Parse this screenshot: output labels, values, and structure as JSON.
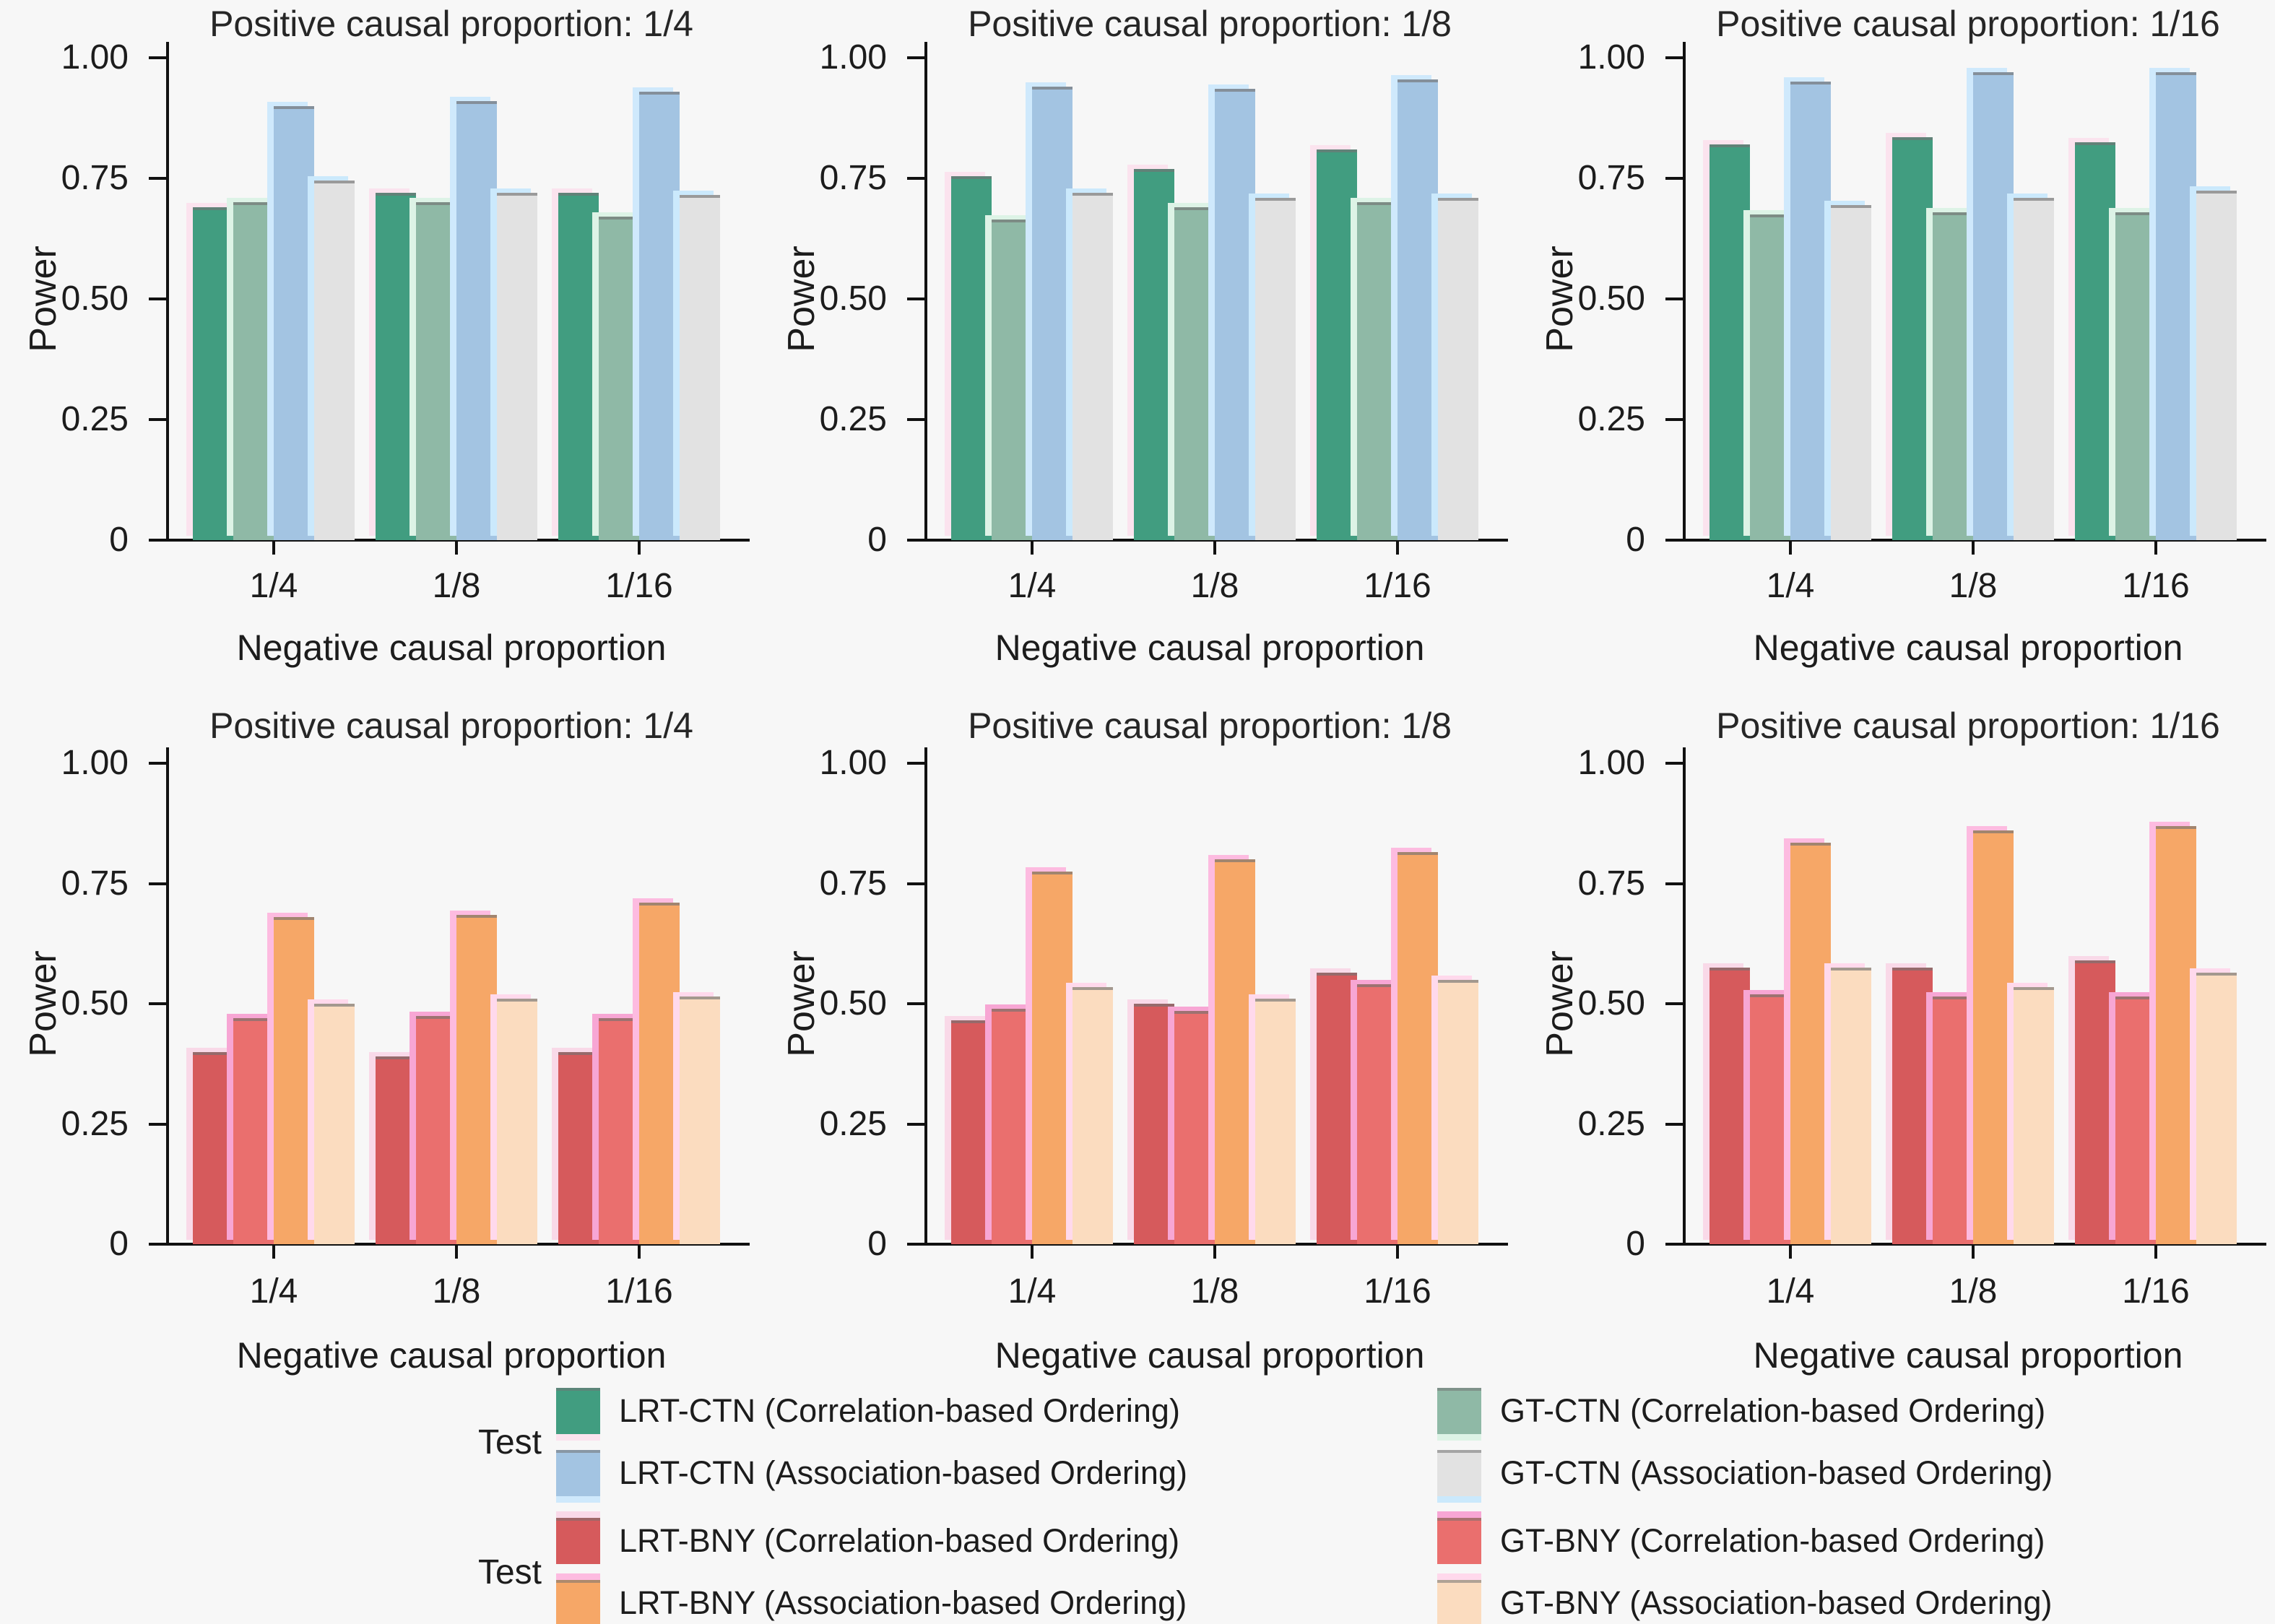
{
  "figure": {
    "background": "#f7f7f7",
    "ylabel": "Power",
    "xlabel": "Negative causal proportion",
    "ytick_labels": [
      "1.00",
      "0.75",
      "0.50",
      "0.25",
      "0"
    ],
    "xtick_labels": [
      "1/4",
      "1/8",
      "1/16"
    ],
    "ylim": [
      0,
      1
    ]
  },
  "series_colors": {
    "lrt_ctn_corr": "#419D80",
    "gt_ctn_corr": "#8FB9A6",
    "lrt_ctn_assoc": "#A3C4E2",
    "gt_ctn_assoc": "#E2E2E2",
    "lrt_bny_corr": "#D65A5C",
    "gt_bny_corr": "#EA6F6E",
    "lrt_bny_assoc": "#F6A767",
    "gt_bny_assoc": "#FBDCBF"
  },
  "ghost_colors": {
    "lrt_ctn_corr": "#FBE3EE",
    "gt_ctn_corr": "#DDF3E6",
    "lrt_ctn_assoc": "#CFE9FC",
    "gt_ctn_assoc": "#CBE9FC",
    "lrt_bny_corr": "#F9D9E8",
    "gt_bny_corr": "#F7A6D4",
    "lrt_bny_assoc": "#FDBBE0",
    "gt_bny_assoc": "#FFD9EC"
  },
  "chart_data": [
    {
      "type": "bar",
      "title": "Positive causal proportion: 1/4",
      "xlabel": "Negative causal proportion",
      "ylabel": "Power",
      "ylim": [
        0,
        1
      ],
      "categories": [
        "1/4",
        "1/8",
        "1/16"
      ],
      "series": [
        {
          "name": "LRT-CTN (Correlation-based Ordering)",
          "color_key": "lrt_ctn_corr",
          "values": [
            0.69,
            0.72,
            0.72
          ]
        },
        {
          "name": "GT-CTN (Correlation-based Ordering)",
          "color_key": "gt_ctn_corr",
          "values": [
            0.7,
            0.7,
            0.67
          ]
        },
        {
          "name": "LRT-CTN (Association-based Ordering)",
          "color_key": "lrt_ctn_assoc",
          "values": [
            0.9,
            0.91,
            0.93
          ]
        },
        {
          "name": "GT-CTN (Association-based Ordering)",
          "color_key": "gt_ctn_assoc",
          "values": [
            0.745,
            0.72,
            0.715
          ]
        }
      ]
    },
    {
      "type": "bar",
      "title": "Positive causal proportion: 1/8",
      "xlabel": "Negative causal proportion",
      "ylabel": "Power",
      "ylim": [
        0,
        1
      ],
      "categories": [
        "1/4",
        "1/8",
        "1/16"
      ],
      "series": [
        {
          "name": "LRT-CTN (Correlation-based Ordering)",
          "color_key": "lrt_ctn_corr",
          "values": [
            0.755,
            0.77,
            0.81
          ]
        },
        {
          "name": "GT-CTN (Correlation-based Ordering)",
          "color_key": "gt_ctn_corr",
          "values": [
            0.665,
            0.69,
            0.7
          ]
        },
        {
          "name": "LRT-CTN (Association-based Ordering)",
          "color_key": "lrt_ctn_assoc",
          "values": [
            0.94,
            0.935,
            0.955
          ]
        },
        {
          "name": "GT-CTN (Association-based Ordering)",
          "color_key": "gt_ctn_assoc",
          "values": [
            0.72,
            0.71,
            0.71
          ]
        }
      ]
    },
    {
      "type": "bar",
      "title": "Positive causal proportion: 1/16",
      "xlabel": "Negative causal proportion",
      "ylabel": "Power",
      "ylim": [
        0,
        1
      ],
      "categories": [
        "1/4",
        "1/8",
        "1/16"
      ],
      "series": [
        {
          "name": "LRT-CTN (Correlation-based Ordering)",
          "color_key": "lrt_ctn_corr",
          "values": [
            0.82,
            0.835,
            0.825
          ]
        },
        {
          "name": "GT-CTN (Correlation-based Ordering)",
          "color_key": "gt_ctn_corr",
          "values": [
            0.675,
            0.68,
            0.68
          ]
        },
        {
          "name": "LRT-CTN (Association-based Ordering)",
          "color_key": "lrt_ctn_assoc",
          "values": [
            0.95,
            0.97,
            0.97
          ]
        },
        {
          "name": "GT-CTN (Association-based Ordering)",
          "color_key": "gt_ctn_assoc",
          "values": [
            0.695,
            0.71,
            0.725
          ]
        }
      ]
    },
    {
      "type": "bar",
      "title": "Positive causal proportion: 1/4",
      "xlabel": "Negative causal proportion",
      "ylabel": "Power",
      "ylim": [
        0,
        1
      ],
      "categories": [
        "1/4",
        "1/8",
        "1/16"
      ],
      "series": [
        {
          "name": "LRT-BNY (Correlation-based Ordering)",
          "color_key": "lrt_bny_corr",
          "values": [
            0.4,
            0.39,
            0.4
          ]
        },
        {
          "name": "GT-BNY (Correlation-based Ordering)",
          "color_key": "gt_bny_corr",
          "values": [
            0.47,
            0.475,
            0.47
          ]
        },
        {
          "name": "LRT-BNY (Association-based Ordering)",
          "color_key": "lrt_bny_assoc",
          "values": [
            0.68,
            0.685,
            0.71
          ]
        },
        {
          "name": "GT-BNY (Association-based Ordering)",
          "color_key": "gt_bny_assoc",
          "values": [
            0.5,
            0.51,
            0.515
          ]
        }
      ]
    },
    {
      "type": "bar",
      "title": "Positive causal proportion: 1/8",
      "xlabel": "Negative causal proportion",
      "ylabel": "Power",
      "ylim": [
        0,
        1
      ],
      "categories": [
        "1/4",
        "1/8",
        "1/16"
      ],
      "series": [
        {
          "name": "LRT-BNY (Correlation-based Ordering)",
          "color_key": "lrt_bny_corr",
          "values": [
            0.465,
            0.5,
            0.565
          ]
        },
        {
          "name": "GT-BNY (Correlation-based Ordering)",
          "color_key": "gt_bny_corr",
          "values": [
            0.49,
            0.485,
            0.54
          ]
        },
        {
          "name": "LRT-BNY (Association-based Ordering)",
          "color_key": "lrt_bny_assoc",
          "values": [
            0.775,
            0.8,
            0.815
          ]
        },
        {
          "name": "GT-BNY (Association-based Ordering)",
          "color_key": "gt_bny_assoc",
          "values": [
            0.535,
            0.51,
            0.55
          ]
        }
      ]
    },
    {
      "type": "bar",
      "title": "Positive causal proportion: 1/16",
      "xlabel": "Negative causal proportion",
      "ylabel": "Power",
      "ylim": [
        0,
        1
      ],
      "categories": [
        "1/4",
        "1/8",
        "1/16"
      ],
      "series": [
        {
          "name": "LRT-BNY (Correlation-based Ordering)",
          "color_key": "lrt_bny_corr",
          "values": [
            0.575,
            0.575,
            0.59
          ]
        },
        {
          "name": "GT-BNY (Correlation-based Ordering)",
          "color_key": "gt_bny_corr",
          "values": [
            0.52,
            0.515,
            0.515
          ]
        },
        {
          "name": "LRT-BNY (Association-based Ordering)",
          "color_key": "lrt_bny_assoc",
          "values": [
            0.835,
            0.86,
            0.87
          ]
        },
        {
          "name": "GT-BNY (Association-based Ordering)",
          "color_key": "gt_bny_assoc",
          "values": [
            0.575,
            0.535,
            0.565
          ]
        }
      ]
    }
  ],
  "legend": {
    "groups": [
      {
        "title": "Test",
        "columns": [
          [
            {
              "label": "LRT-CTN (Correlation-based Ordering)",
              "color_key": "lrt_ctn_corr"
            },
            {
              "label": "LRT-CTN (Association-based Ordering)",
              "color_key": "lrt_ctn_assoc"
            }
          ],
          [
            {
              "label": "GT-CTN (Correlation-based Ordering)",
              "color_key": "gt_ctn_corr"
            },
            {
              "label": "GT-CTN (Association-based Ordering)",
              "color_key": "gt_ctn_assoc"
            }
          ]
        ]
      },
      {
        "title": "Test",
        "columns": [
          [
            {
              "label": "LRT-BNY (Correlation-based Ordering)",
              "color_key": "lrt_bny_corr"
            },
            {
              "label": "LRT-BNY (Association-based Ordering)",
              "color_key": "lrt_bny_assoc"
            }
          ],
          [
            {
              "label": "GT-BNY (Correlation-based Ordering)",
              "color_key": "gt_bny_corr"
            },
            {
              "label": "GT-BNY (Association-based Ordering)",
              "color_key": "gt_bny_assoc"
            }
          ]
        ]
      }
    ]
  }
}
